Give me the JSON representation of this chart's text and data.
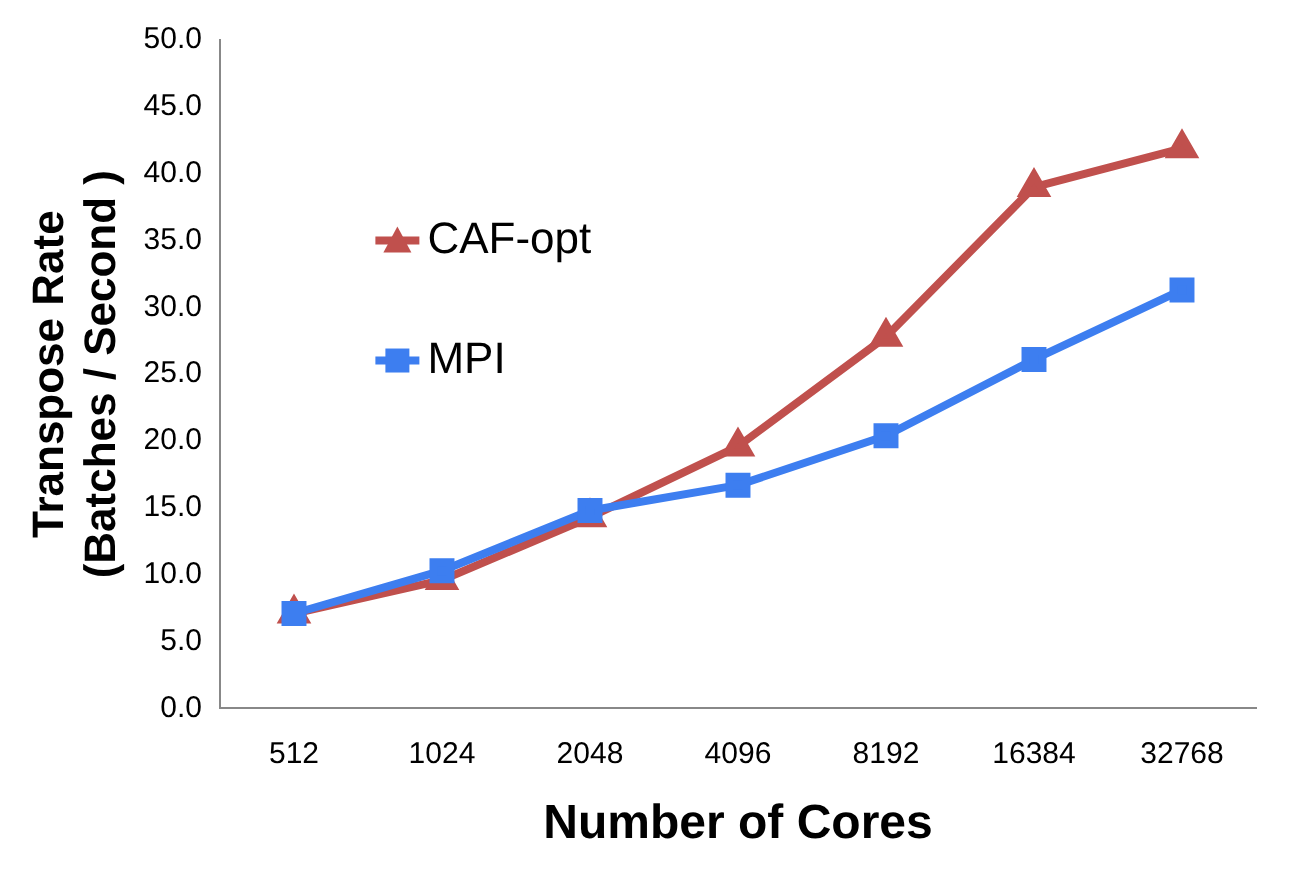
{
  "chart_data": {
    "type": "line",
    "xlabel": "Number of Cores",
    "ylabel": "Transpose Rate\n(Batches / Second )",
    "categories": [
      "512",
      "1024",
      "2048",
      "4096",
      "8192",
      "16384",
      "32768"
    ],
    "series": [
      {
        "name": "CAF-opt",
        "color": "#c0504d",
        "marker": "triangle",
        "values": [
          7.1,
          9.6,
          14.3,
          19.6,
          27.8,
          39.0,
          41.9
        ]
      },
      {
        "name": "MPI",
        "color": "#3d7ef0",
        "marker": "square",
        "values": [
          7.1,
          10.3,
          14.8,
          16.7,
          20.4,
          26.1,
          31.3
        ]
      }
    ],
    "ylim": [
      0,
      50
    ],
    "yticks": [
      {
        "value": 0,
        "label": "0.0"
      },
      {
        "value": 5,
        "label": "5.0"
      },
      {
        "value": 10,
        "label": "10.0"
      },
      {
        "value": 15,
        "label": "15.0"
      },
      {
        "value": 20,
        "label": "20.0"
      },
      {
        "value": 25,
        "label": "25.0"
      },
      {
        "value": 30,
        "label": "30.0"
      },
      {
        "value": 35,
        "label": "35.0"
      },
      {
        "value": 40,
        "label": "40.0"
      },
      {
        "value": 45,
        "label": "45.0"
      },
      {
        "value": 50,
        "label": "50.0"
      }
    ],
    "grid": false,
    "legend": "center left",
    "line_style": "solid"
  }
}
